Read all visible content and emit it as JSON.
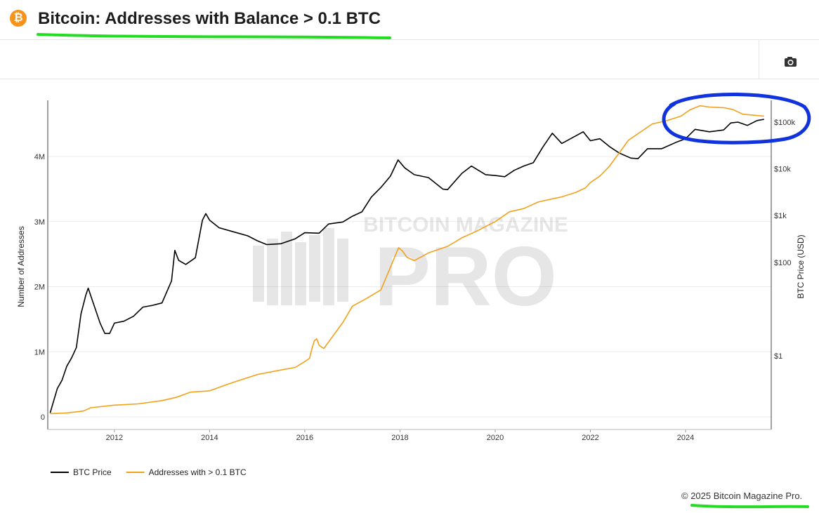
{
  "header": {
    "logo_glyph": "₿",
    "title": "Bitcoin: Addresses with Balance > 0.1 BTC"
  },
  "toolbar": {
    "camera_icon": "camera-icon"
  },
  "watermark": {
    "line1": "BITCOIN MAGAZINE",
    "line2": "PRO"
  },
  "copyright": "© 2025 Bitcoin Magazine Pro.",
  "colors": {
    "price": "#000000",
    "addresses": "#f2a11b",
    "annotation": "#1133dd",
    "underline": "#22dd22"
  },
  "chart_data": {
    "type": "line",
    "title": "Bitcoin: Addresses with Balance > 0.1 BTC",
    "xlabel": "",
    "ylabel_left": "Number of Addresses",
    "ylabel_right": "BTC Price (USD)",
    "x_ticks": [
      "2012",
      "2014",
      "2016",
      "2018",
      "2020",
      "2022",
      "2024"
    ],
    "y_left_ticks": [
      {
        "value": 0,
        "label": "0"
      },
      {
        "value": 1000000,
        "label": "1M"
      },
      {
        "value": 2000000,
        "label": "2M"
      },
      {
        "value": 3000000,
        "label": "3M"
      },
      {
        "value": 4000000,
        "label": "4M"
      }
    ],
    "y_right_ticks": [
      {
        "value": 1,
        "label": "$1"
      },
      {
        "value": 100,
        "label": "$100"
      },
      {
        "value": 1000,
        "label": "$1k"
      },
      {
        "value": 10000,
        "label": "$10k"
      },
      {
        "value": 100000,
        "label": "$100k"
      }
    ],
    "x_range": [
      2010.6,
      2025.8
    ],
    "y_left_range": [
      0,
      4800000
    ],
    "y_right_range": [
      0.008,
      450000
    ],
    "y_right_scale": "log",
    "grid": true,
    "legend_position": "bottom-left",
    "series": [
      {
        "name": "BTC Price",
        "axis": "right",
        "color": "#000000",
        "x": [
          2010.65,
          2010.8,
          2010.9,
          2011.0,
          2011.1,
          2011.2,
          2011.3,
          2011.4,
          2011.45,
          2011.55,
          2011.7,
          2011.8,
          2011.9,
          2012.0,
          2012.2,
          2012.4,
          2012.6,
          2012.8,
          2013.0,
          2013.2,
          2013.27,
          2013.35,
          2013.5,
          2013.7,
          2013.85,
          2013.92,
          2014.0,
          2014.2,
          2014.5,
          2014.8,
          2015.0,
          2015.2,
          2015.5,
          2015.8,
          2016.0,
          2016.3,
          2016.5,
          2016.8,
          2017.0,
          2017.2,
          2017.4,
          2017.6,
          2017.8,
          2017.96,
          2018.1,
          2018.3,
          2018.6,
          2018.9,
          2019.0,
          2019.3,
          2019.5,
          2019.8,
          2020.0,
          2020.2,
          2020.4,
          2020.6,
          2020.8,
          2021.0,
          2021.2,
          2021.4,
          2021.6,
          2021.85,
          2022.0,
          2022.2,
          2022.4,
          2022.6,
          2022.85,
          2023.0,
          2023.2,
          2023.5,
          2023.8,
          2024.0,
          2024.2,
          2024.5,
          2024.8,
          2024.95,
          2025.1,
          2025.3,
          2025.5,
          2025.65
        ],
        "y": [
          0.06,
          0.2,
          0.3,
          0.6,
          0.9,
          1.5,
          8,
          20,
          28,
          14,
          5,
          3,
          3,
          5,
          5.5,
          7,
          11,
          12,
          13.5,
          40,
          180,
          110,
          90,
          125,
          800,
          1100,
          800,
          550,
          450,
          370,
          290,
          240,
          250,
          320,
          430,
          420,
          660,
          730,
          970,
          1200,
          2500,
          4000,
          7000,
          15500,
          10500,
          7500,
          6500,
          3700,
          3600,
          8000,
          11500,
          7500,
          7200,
          6800,
          9300,
          11500,
          13500,
          29000,
          58000,
          35000,
          45000,
          62000,
          40000,
          44000,
          30000,
          22000,
          17000,
          16500,
          27000,
          27000,
          37000,
          44000,
          70000,
          62000,
          68000,
          96000,
          100000,
          85000,
          108000,
          115000
        ]
      },
      {
        "name": "Addresses with > 0.1 BTC",
        "axis": "left",
        "color": "#f2a11b",
        "x": [
          2010.65,
          2011.0,
          2011.35,
          2011.5,
          2012.0,
          2012.5,
          2013.0,
          2013.3,
          2013.6,
          2014.0,
          2014.3,
          2014.5,
          2015.0,
          2015.5,
          2015.8,
          2016.0,
          2016.1,
          2016.15,
          2016.2,
          2016.25,
          2016.3,
          2016.4,
          2016.5,
          2016.8,
          2017.0,
          2017.3,
          2017.6,
          2017.8,
          2017.97,
          2018.05,
          2018.15,
          2018.3,
          2018.6,
          2019.0,
          2019.3,
          2019.6,
          2020.0,
          2020.3,
          2020.6,
          2020.9,
          2021.2,
          2021.4,
          2021.7,
          2021.9,
          2022.0,
          2022.2,
          2022.4,
          2022.6,
          2022.8,
          2023.0,
          2023.3,
          2023.6,
          2023.9,
          2024.1,
          2024.3,
          2024.5,
          2024.8,
          2025.0,
          2025.2,
          2025.5,
          2025.65
        ],
        "y": [
          50000,
          60000,
          90000,
          140000,
          180000,
          200000,
          250000,
          300000,
          380000,
          400000,
          480000,
          530000,
          650000,
          720000,
          760000,
          850000,
          900000,
          1050000,
          1170000,
          1200000,
          1100000,
          1050000,
          1150000,
          1450000,
          1700000,
          1820000,
          1950000,
          2300000,
          2600000,
          2550000,
          2450000,
          2400000,
          2520000,
          2620000,
          2750000,
          2850000,
          3000000,
          3150000,
          3200000,
          3300000,
          3350000,
          3380000,
          3450000,
          3520000,
          3600000,
          3700000,
          3850000,
          4050000,
          4250000,
          4350000,
          4500000,
          4550000,
          4620000,
          4720000,
          4780000,
          4760000,
          4750000,
          4720000,
          4650000,
          4630000,
          4620000
        ]
      }
    ]
  }
}
